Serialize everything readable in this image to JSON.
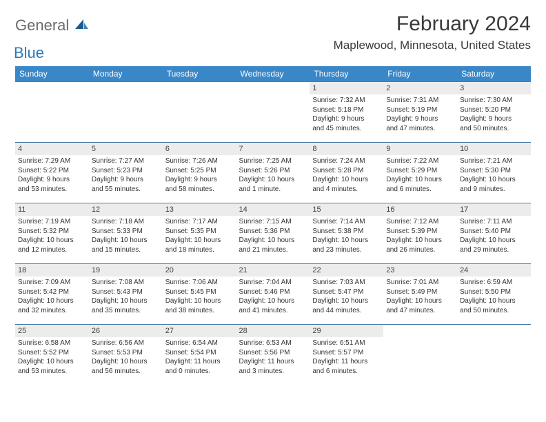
{
  "logo": {
    "general": "General",
    "blue": "Blue"
  },
  "title": "February 2024",
  "location": "Maplewood, Minnesota, United States",
  "weekdays": [
    "Sunday",
    "Monday",
    "Tuesday",
    "Wednesday",
    "Thursday",
    "Friday",
    "Saturday"
  ],
  "header_bg": "#3a87c8",
  "daynum_bg": "#ececec",
  "row_border": "#4a7aa8",
  "weeks": [
    [
      null,
      null,
      null,
      null,
      {
        "n": "1",
        "sunrise": "Sunrise: 7:32 AM",
        "sunset": "Sunset: 5:18 PM",
        "daylight1": "Daylight: 9 hours",
        "daylight2": "and 45 minutes."
      },
      {
        "n": "2",
        "sunrise": "Sunrise: 7:31 AM",
        "sunset": "Sunset: 5:19 PM",
        "daylight1": "Daylight: 9 hours",
        "daylight2": "and 47 minutes."
      },
      {
        "n": "3",
        "sunrise": "Sunrise: 7:30 AM",
        "sunset": "Sunset: 5:20 PM",
        "daylight1": "Daylight: 9 hours",
        "daylight2": "and 50 minutes."
      }
    ],
    [
      {
        "n": "4",
        "sunrise": "Sunrise: 7:29 AM",
        "sunset": "Sunset: 5:22 PM",
        "daylight1": "Daylight: 9 hours",
        "daylight2": "and 53 minutes."
      },
      {
        "n": "5",
        "sunrise": "Sunrise: 7:27 AM",
        "sunset": "Sunset: 5:23 PM",
        "daylight1": "Daylight: 9 hours",
        "daylight2": "and 55 minutes."
      },
      {
        "n": "6",
        "sunrise": "Sunrise: 7:26 AM",
        "sunset": "Sunset: 5:25 PM",
        "daylight1": "Daylight: 9 hours",
        "daylight2": "and 58 minutes."
      },
      {
        "n": "7",
        "sunrise": "Sunrise: 7:25 AM",
        "sunset": "Sunset: 5:26 PM",
        "daylight1": "Daylight: 10 hours",
        "daylight2": "and 1 minute."
      },
      {
        "n": "8",
        "sunrise": "Sunrise: 7:24 AM",
        "sunset": "Sunset: 5:28 PM",
        "daylight1": "Daylight: 10 hours",
        "daylight2": "and 4 minutes."
      },
      {
        "n": "9",
        "sunrise": "Sunrise: 7:22 AM",
        "sunset": "Sunset: 5:29 PM",
        "daylight1": "Daylight: 10 hours",
        "daylight2": "and 6 minutes."
      },
      {
        "n": "10",
        "sunrise": "Sunrise: 7:21 AM",
        "sunset": "Sunset: 5:30 PM",
        "daylight1": "Daylight: 10 hours",
        "daylight2": "and 9 minutes."
      }
    ],
    [
      {
        "n": "11",
        "sunrise": "Sunrise: 7:19 AM",
        "sunset": "Sunset: 5:32 PM",
        "daylight1": "Daylight: 10 hours",
        "daylight2": "and 12 minutes."
      },
      {
        "n": "12",
        "sunrise": "Sunrise: 7:18 AM",
        "sunset": "Sunset: 5:33 PM",
        "daylight1": "Daylight: 10 hours",
        "daylight2": "and 15 minutes."
      },
      {
        "n": "13",
        "sunrise": "Sunrise: 7:17 AM",
        "sunset": "Sunset: 5:35 PM",
        "daylight1": "Daylight: 10 hours",
        "daylight2": "and 18 minutes."
      },
      {
        "n": "14",
        "sunrise": "Sunrise: 7:15 AM",
        "sunset": "Sunset: 5:36 PM",
        "daylight1": "Daylight: 10 hours",
        "daylight2": "and 21 minutes."
      },
      {
        "n": "15",
        "sunrise": "Sunrise: 7:14 AM",
        "sunset": "Sunset: 5:38 PM",
        "daylight1": "Daylight: 10 hours",
        "daylight2": "and 23 minutes."
      },
      {
        "n": "16",
        "sunrise": "Sunrise: 7:12 AM",
        "sunset": "Sunset: 5:39 PM",
        "daylight1": "Daylight: 10 hours",
        "daylight2": "and 26 minutes."
      },
      {
        "n": "17",
        "sunrise": "Sunrise: 7:11 AM",
        "sunset": "Sunset: 5:40 PM",
        "daylight1": "Daylight: 10 hours",
        "daylight2": "and 29 minutes."
      }
    ],
    [
      {
        "n": "18",
        "sunrise": "Sunrise: 7:09 AM",
        "sunset": "Sunset: 5:42 PM",
        "daylight1": "Daylight: 10 hours",
        "daylight2": "and 32 minutes."
      },
      {
        "n": "19",
        "sunrise": "Sunrise: 7:08 AM",
        "sunset": "Sunset: 5:43 PM",
        "daylight1": "Daylight: 10 hours",
        "daylight2": "and 35 minutes."
      },
      {
        "n": "20",
        "sunrise": "Sunrise: 7:06 AM",
        "sunset": "Sunset: 5:45 PM",
        "daylight1": "Daylight: 10 hours",
        "daylight2": "and 38 minutes."
      },
      {
        "n": "21",
        "sunrise": "Sunrise: 7:04 AM",
        "sunset": "Sunset: 5:46 PM",
        "daylight1": "Daylight: 10 hours",
        "daylight2": "and 41 minutes."
      },
      {
        "n": "22",
        "sunrise": "Sunrise: 7:03 AM",
        "sunset": "Sunset: 5:47 PM",
        "daylight1": "Daylight: 10 hours",
        "daylight2": "and 44 minutes."
      },
      {
        "n": "23",
        "sunrise": "Sunrise: 7:01 AM",
        "sunset": "Sunset: 5:49 PM",
        "daylight1": "Daylight: 10 hours",
        "daylight2": "and 47 minutes."
      },
      {
        "n": "24",
        "sunrise": "Sunrise: 6:59 AM",
        "sunset": "Sunset: 5:50 PM",
        "daylight1": "Daylight: 10 hours",
        "daylight2": "and 50 minutes."
      }
    ],
    [
      {
        "n": "25",
        "sunrise": "Sunrise: 6:58 AM",
        "sunset": "Sunset: 5:52 PM",
        "daylight1": "Daylight: 10 hours",
        "daylight2": "and 53 minutes."
      },
      {
        "n": "26",
        "sunrise": "Sunrise: 6:56 AM",
        "sunset": "Sunset: 5:53 PM",
        "daylight1": "Daylight: 10 hours",
        "daylight2": "and 56 minutes."
      },
      {
        "n": "27",
        "sunrise": "Sunrise: 6:54 AM",
        "sunset": "Sunset: 5:54 PM",
        "daylight1": "Daylight: 11 hours",
        "daylight2": "and 0 minutes."
      },
      {
        "n": "28",
        "sunrise": "Sunrise: 6:53 AM",
        "sunset": "Sunset: 5:56 PM",
        "daylight1": "Daylight: 11 hours",
        "daylight2": "and 3 minutes."
      },
      {
        "n": "29",
        "sunrise": "Sunrise: 6:51 AM",
        "sunset": "Sunset: 5:57 PM",
        "daylight1": "Daylight: 11 hours",
        "daylight2": "and 6 minutes."
      },
      null,
      null
    ]
  ]
}
